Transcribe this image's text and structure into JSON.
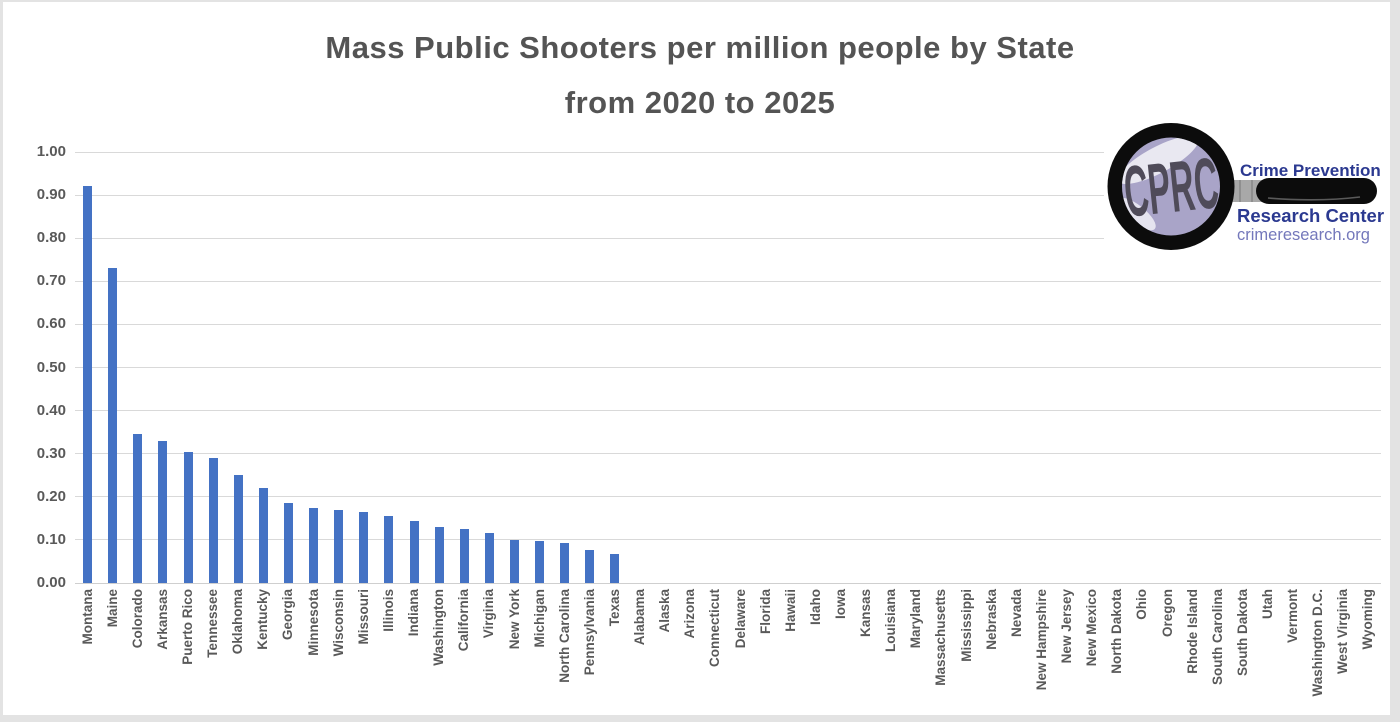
{
  "frame": {
    "background": "#E3E3E3",
    "card_background": "#FFFFFF"
  },
  "header": {
    "title_line1": "Mass Public Shooters per million people by State",
    "title_line2": "from 2020 to 2025",
    "color": "#545454"
  },
  "logo": {
    "monogram": "CPRC",
    "name_line1": "Crime Prevention",
    "name_line2": "Research Center",
    "url": "crimeresearch.org",
    "colors": {
      "navy": "#2B3990",
      "url_blue": "#7478BB",
      "lens": "#A9A4C8",
      "monogram_color": "#4F4B59",
      "handle": "#0C0C0C",
      "ferrule": "#A8A8A8",
      "backdrop": "#FFFFFF"
    }
  },
  "chart_data": {
    "type": "bar",
    "title": "Mass Public Shooters per million people by State from 2020 to 2025",
    "xlabel": "",
    "ylabel": "",
    "ylim": [
      0,
      1.0
    ],
    "ytick_step": 0.1,
    "ytick_labels": [
      "0.00",
      "0.10",
      "0.20",
      "0.30",
      "0.40",
      "0.50",
      "0.60",
      "0.70",
      "0.80",
      "0.90",
      "1.00"
    ],
    "grid": true,
    "legend": false,
    "bar_color": "#4472C4",
    "gridline_color": "#D9D9D9",
    "axis_line_color": "#CFCFCF",
    "axis_label_color": "#595959",
    "categories": [
      "Montana",
      "Maine",
      "Colorado",
      "Arkansas",
      "Puerto Rico",
      "Tennessee",
      "Oklahoma",
      "Kentucky",
      "Georgia",
      "Minnesota",
      "Wisconsin",
      "Missouri",
      "Illinois",
      "Indiana",
      "Washington",
      "California",
      "Virginia",
      "New York",
      "Michigan",
      "North Carolina",
      "Pennsylvania",
      "Texas",
      "Alabama",
      "Alaska",
      "Arizona",
      "Connecticut",
      "Delaware",
      "Florida",
      "Hawaii",
      "Idaho",
      "Iowa",
      "Kansas",
      "Louisiana",
      "Maryland",
      "Massachusetts",
      "Mississippi",
      "Nebraska",
      "Nevada",
      "New Hampshire",
      "New Jersey",
      "New Mexico",
      "North Dakota",
      "Ohio",
      "Oregon",
      "Rhode Island",
      "South Carolina",
      "South Dakota",
      "Utah",
      "Vermont",
      "Washington D.C.",
      "West Virginia",
      "Wyoming"
    ],
    "values": [
      0.92,
      0.73,
      0.345,
      0.33,
      0.305,
      0.29,
      0.25,
      0.22,
      0.185,
      0.175,
      0.17,
      0.165,
      0.155,
      0.145,
      0.13,
      0.125,
      0.115,
      0.1,
      0.098,
      0.093,
      0.077,
      0.067,
      0,
      0,
      0,
      0,
      0,
      0,
      0,
      0,
      0,
      0,
      0,
      0,
      0,
      0,
      0,
      0,
      0,
      0,
      0,
      0,
      0,
      0,
      0,
      0,
      0,
      0,
      0,
      0,
      0,
      0
    ]
  }
}
